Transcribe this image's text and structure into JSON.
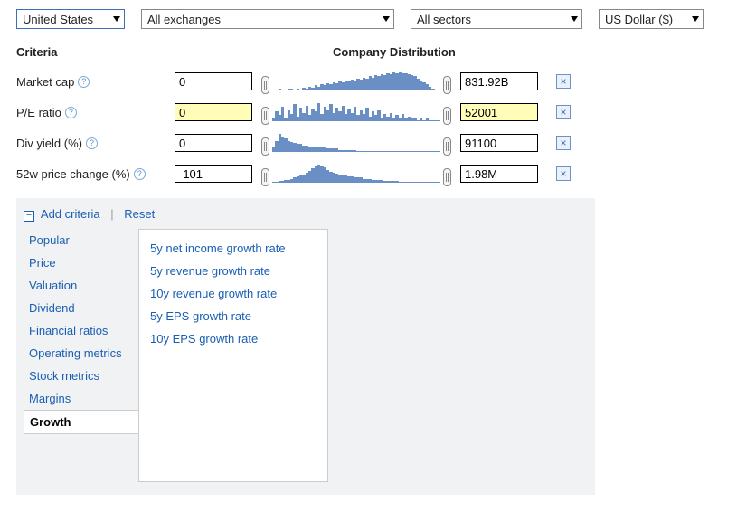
{
  "filters": {
    "country": "United States",
    "exchange": "All exchanges",
    "sector": "All sectors",
    "currency": "US Dollar ($)",
    "widths": {
      "country": 120,
      "exchange": 280,
      "sector": 190,
      "currency": 116
    }
  },
  "headers": {
    "criteria": "Criteria",
    "distribution": "Company Distribution"
  },
  "criteria": [
    {
      "label": "Market cap",
      "min": "0",
      "max": "831.92B",
      "highlight": false,
      "bars": [
        1,
        1,
        2,
        1,
        1,
        2,
        2,
        1,
        2,
        1,
        3,
        2,
        4,
        3,
        5,
        4,
        6,
        5,
        7,
        6,
        8,
        7,
        9,
        8,
        10,
        9,
        11,
        10,
        12,
        11,
        13,
        12,
        14,
        13,
        15,
        14,
        16,
        15,
        17,
        16,
        18,
        17,
        18,
        17,
        17,
        16,
        15,
        14,
        12,
        10,
        8,
        6,
        4,
        2,
        1,
        1
      ]
    },
    {
      "label": "P/E ratio",
      "min": "0",
      "max": "52001",
      "highlight": true,
      "bars": [
        2,
        8,
        5,
        12,
        3,
        9,
        6,
        14,
        4,
        11,
        7,
        13,
        5,
        10,
        8,
        15,
        6,
        12,
        9,
        14,
        7,
        11,
        8,
        13,
        6,
        10,
        7,
        12,
        5,
        9,
        6,
        11,
        4,
        8,
        5,
        9,
        3,
        6,
        4,
        7,
        2,
        5,
        3,
        6,
        2,
        4,
        2,
        3,
        1,
        2,
        1,
        2,
        1,
        1,
        1,
        1
      ]
    },
    {
      "label": "Div yield (%)",
      "min": "0",
      "max": "91100",
      "highlight": false,
      "bars": [
        4,
        10,
        16,
        14,
        12,
        10,
        9,
        8,
        7,
        7,
        6,
        6,
        5,
        5,
        5,
        4,
        4,
        4,
        3,
        3,
        3,
        3,
        2,
        2,
        2,
        2,
        2,
        2,
        1,
        1,
        1,
        1,
        1,
        1,
        1,
        1,
        1,
        1,
        1,
        1,
        1,
        1,
        1,
        1,
        1,
        1,
        1,
        1,
        1,
        1,
        1,
        1,
        1,
        1,
        1,
        1
      ]
    },
    {
      "label": "52w price change (%)",
      "min": "-101",
      "max": "1.98M",
      "highlight": false,
      "bars": [
        1,
        1,
        2,
        2,
        3,
        3,
        4,
        5,
        6,
        7,
        8,
        10,
        12,
        14,
        16,
        18,
        17,
        15,
        13,
        11,
        10,
        9,
        8,
        7,
        7,
        6,
        6,
        5,
        5,
        5,
        4,
        4,
        4,
        3,
        3,
        3,
        3,
        2,
        2,
        2,
        2,
        2,
        1,
        1,
        1,
        1,
        1,
        1,
        1,
        1,
        1,
        1,
        1,
        1,
        1,
        1
      ]
    }
  ],
  "panel": {
    "add": "Add criteria",
    "reset": "Reset",
    "categories": [
      "Popular",
      "Price",
      "Valuation",
      "Dividend",
      "Financial ratios",
      "Operating metrics",
      "Stock metrics",
      "Margins",
      "Growth"
    ],
    "active_category": "Growth",
    "options": [
      "5y net income growth rate",
      "5y revenue growth rate",
      "10y revenue growth rate",
      "5y EPS growth rate",
      "10y EPS growth rate"
    ]
  },
  "style": {
    "bar_color": "#6a8fc4",
    "link_color": "#1a5fb4",
    "highlight_bg": "#fffdb8"
  }
}
